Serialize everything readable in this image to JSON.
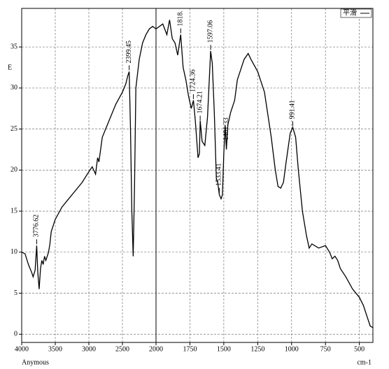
{
  "chart_data": {
    "type": "line",
    "ylabel": "E",
    "xlabel_left": "Anymous",
    "xlabel_right": "cm-1",
    "xlim": [
      4000,
      400
    ],
    "xbreak": 2000,
    "ylim": [
      -1,
      39.7
    ],
    "xticks": [
      4000,
      3500,
      3000,
      2500,
      2000,
      1750,
      1500,
      1250,
      1000,
      750,
      500
    ],
    "yticks": [
      0,
      5,
      10,
      15,
      20,
      25,
      30,
      35
    ],
    "grid": true,
    "legend": "top-right",
    "series": [
      {
        "name": "平滑",
        "color": "#000000",
        "x": [
          4000,
          3950,
          3900,
          3850,
          3830,
          3800,
          3776.62,
          3760,
          3740,
          3720,
          3700,
          3680,
          3660,
          3640,
          3620,
          3600,
          3580,
          3560,
          3500,
          3400,
          3300,
          3200,
          3100,
          3000,
          2950,
          2900,
          2870,
          2850,
          2800,
          2700,
          2600,
          2500,
          2450,
          2420,
          2399.45,
          2380,
          2360,
          2340,
          2320,
          2300,
          2250,
          2200,
          2150,
          2100,
          2050,
          2000,
          1950,
          1920,
          1900,
          1880,
          1860,
          1840,
          1818,
          1800,
          1780,
          1760,
          1740,
          1724,
          1710,
          1690,
          1680,
          1674,
          1660,
          1640,
          1620,
          1597,
          1585,
          1570,
          1555,
          1545,
          1533,
          1520,
          1510,
          1500,
          1490,
          1481,
          1470,
          1450,
          1420,
          1400,
          1380,
          1350,
          1320,
          1300,
          1250,
          1200,
          1150,
          1120,
          1100,
          1080,
          1060,
          1040,
          1010,
          991,
          970,
          950,
          920,
          890,
          870,
          850,
          800,
          750,
          720,
          700,
          680,
          660,
          640,
          600,
          550,
          500,
          470,
          440,
          420,
          400
        ],
        "values": [
          10.0,
          9.8,
          8.5,
          7.5,
          7.0,
          7.8,
          10.8,
          7.5,
          5.5,
          8.0,
          9.0,
          8.5,
          9.5,
          9.0,
          9.5,
          10.0,
          11.0,
          12.5,
          14.0,
          15.5,
          16.5,
          17.5,
          18.5,
          19.8,
          20.4,
          19.5,
          21.5,
          21.0,
          24.0,
          26.0,
          28.0,
          29.5,
          30.5,
          31.5,
          32.0,
          25,
          15,
          9.5,
          18,
          30,
          33.5,
          35.5,
          36.5,
          37.2,
          37.5,
          37.2,
          37.8,
          36.5,
          38.3,
          36,
          35.5,
          34,
          36.5,
          32.5,
          31,
          29,
          27.5,
          28.5,
          26,
          21.5,
          22,
          26,
          23.5,
          23,
          26.5,
          34.5,
          33,
          27,
          19,
          18.5,
          17,
          16.5,
          17,
          22,
          25.5,
          22.5,
          25.5,
          27,
          28.5,
          31,
          32,
          33.5,
          34.2,
          33.5,
          32,
          29.5,
          24,
          20,
          18,
          17.8,
          18.5,
          21,
          24.5,
          25.2,
          24,
          20,
          15,
          12,
          10.5,
          11,
          10.5,
          10.8,
          10.0,
          9.2,
          9.5,
          9.0,
          8,
          7,
          5.5,
          4.5,
          3.5,
          2,
          1,
          0.8
        ]
      }
    ],
    "peaks": [
      3776.62,
      2399.45,
      {
        "value": 1818,
        "label": "1818."
      },
      1724.36,
      1674.21,
      1597.06,
      1533.41,
      1481.33,
      991.41
    ]
  }
}
